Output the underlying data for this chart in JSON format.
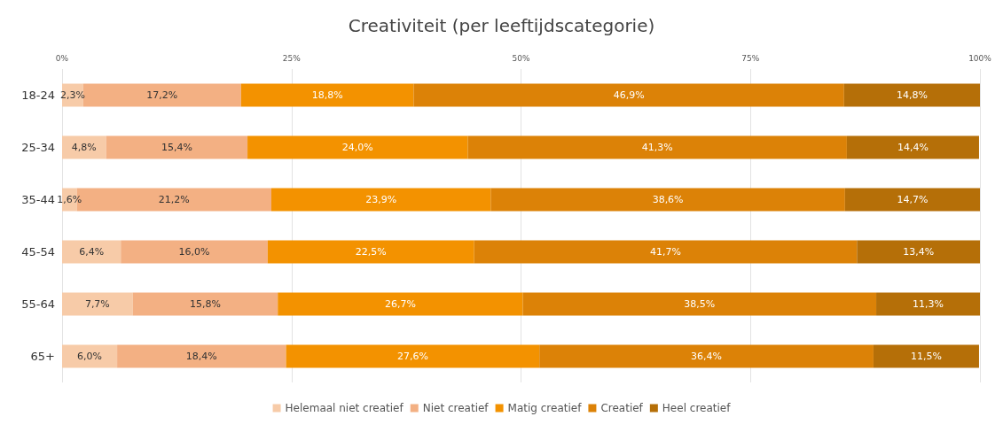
{
  "chart_data": {
    "type": "bar",
    "orientation": "horizontal",
    "stacked": true,
    "title": "Creativiteit (per leeftijdscategorie)",
    "categories": [
      "18-24",
      "25-34",
      "35-44",
      "45-54",
      "55-64",
      "65+"
    ],
    "xlim": [
      0,
      100
    ],
    "xticks": [
      {
        "value": 0,
        "label": "0%"
      },
      {
        "value": 25,
        "label": "25%"
      },
      {
        "value": 50,
        "label": "50%"
      },
      {
        "value": 75,
        "label": "75%"
      },
      {
        "value": 100,
        "label": "100%"
      }
    ],
    "grid": "x",
    "legend": "bottom",
    "series": [
      {
        "name": "Helemaal niet creatief",
        "color": "#f7cba8",
        "values": [
          2.3,
          4.8,
          1.6,
          6.4,
          7.7,
          6.0
        ],
        "value_labels": [
          "2,3%",
          "4,8%",
          "1,6%",
          "6,4%",
          "7,7%",
          "6,0%"
        ]
      },
      {
        "name": "Niet creatief",
        "color": "#f3b083",
        "values": [
          17.2,
          15.4,
          21.2,
          16.0,
          15.8,
          18.4
        ],
        "value_labels": [
          "17,2%",
          "15,4%",
          "21,2%",
          "16,0%",
          "15,8%",
          "18,4%"
        ]
      },
      {
        "name": "Matig creatief",
        "color": "#f39200",
        "values": [
          18.8,
          24.0,
          23.9,
          22.5,
          26.7,
          27.6
        ],
        "value_labels": [
          "18,8%",
          "24,0%",
          "23,9%",
          "22,5%",
          "26,7%",
          "27,6%"
        ]
      },
      {
        "name": "Creatief",
        "color": "#dc8207",
        "values": [
          46.9,
          41.3,
          38.6,
          41.7,
          38.5,
          36.4
        ],
        "value_labels": [
          "46,9%",
          "41,3%",
          "38,6%",
          "41,7%",
          "38,5%",
          "36,4%"
        ]
      },
      {
        "name": "Heel creatief",
        "color": "#b56f08",
        "values": [
          14.8,
          14.4,
          14.7,
          13.4,
          11.3,
          11.5
        ],
        "value_labels": [
          "14,8%",
          "14,4%",
          "14,7%",
          "13,4%",
          "11,3%",
          "11,5%"
        ]
      }
    ]
  }
}
